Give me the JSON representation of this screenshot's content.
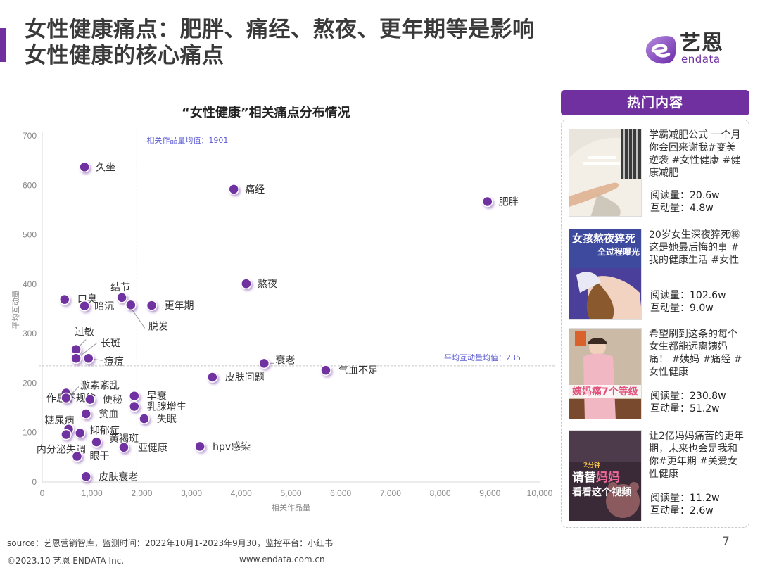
{
  "header": {
    "title_line1": "女性健康痛点：肥胖、痛经、熬夜、更年期等是影响",
    "title_line2": "女性健康的核心痛点",
    "accent_color": "#7030a0"
  },
  "logo": {
    "cn": "艺恩",
    "en": "endata"
  },
  "chart_data": {
    "type": "scatter",
    "title": "“女性健康”相关痛点分布情况",
    "xlabel": "相关作品量",
    "ylabel": "平均互动量",
    "xlim": [
      0,
      10000
    ],
    "ylim": [
      0,
      700
    ],
    "x_ticks": [
      "0",
      "1,000",
      "2,000",
      "3,000",
      "4,000",
      "5,000",
      "6,000",
      "7,000",
      "8,000",
      "9,000",
      "10,000"
    ],
    "y_ticks": [
      "0",
      "100",
      "200",
      "300",
      "400",
      "500",
      "600",
      "700"
    ],
    "grid": false,
    "legend": null,
    "point_color": "#7030a0",
    "reference_lines": [
      {
        "axis": "x",
        "value": 1901,
        "label": "相关作品量均值：1901"
      },
      {
        "axis": "y",
        "value": 235,
        "label": "平均互动量均值：235"
      }
    ],
    "points": [
      {
        "label": "久坐",
        "x": 850,
        "y": 637
      },
      {
        "label": "痛经",
        "x": 3850,
        "y": 592
      },
      {
        "label": "肥胖",
        "x": 8950,
        "y": 567
      },
      {
        "label": "熬夜",
        "x": 4100,
        "y": 401
      },
      {
        "label": "口臭",
        "x": 450,
        "y": 369
      },
      {
        "label": "暗沉",
        "x": 850,
        "y": 356
      },
      {
        "label": "结节",
        "x": 1600,
        "y": 373
      },
      {
        "label": "脱发",
        "x": 1780,
        "y": 358
      },
      {
        "label": "更年期",
        "x": 2200,
        "y": 357
      },
      {
        "label": "过敏",
        "x": 680,
        "y": 268
      },
      {
        "label": "长斑",
        "x": 680,
        "y": 250
      },
      {
        "label": "痘痘",
        "x": 930,
        "y": 250
      },
      {
        "label": "作息不规律",
        "x": 480,
        "y": 180
      },
      {
        "label": "激素紊乱",
        "x": 480,
        "y": 170
      },
      {
        "label": "便秘",
        "x": 960,
        "y": 167
      },
      {
        "label": "贫血",
        "x": 880,
        "y": 138
      },
      {
        "label": "早衰",
        "x": 1850,
        "y": 174
      },
      {
        "label": "乳腺增生",
        "x": 1850,
        "y": 153
      },
      {
        "label": "失眠",
        "x": 2050,
        "y": 128
      },
      {
        "label": "糖尿病",
        "x": 530,
        "y": 107
      },
      {
        "label": "抑郁症",
        "x": 760,
        "y": 99
      },
      {
        "label": "内分泌失调",
        "x": 480,
        "y": 96
      },
      {
        "label": "黄褐斑",
        "x": 1090,
        "y": 81
      },
      {
        "label": "亚健康",
        "x": 1640,
        "y": 70
      },
      {
        "label": "hpv感染",
        "x": 3170,
        "y": 72
      },
      {
        "label": "眼干",
        "x": 700,
        "y": 52
      },
      {
        "label": "皮肤衰老",
        "x": 880,
        "y": 11
      },
      {
        "label": "衰老",
        "x": 4460,
        "y": 240
      },
      {
        "label": "皮肤问题",
        "x": 3420,
        "y": 212
      },
      {
        "label": "气血不足",
        "x": 5700,
        "y": 226
      }
    ]
  },
  "hot_content": {
    "title": "热门内容",
    "items": [
      {
        "text": "学霸减肥公式 一个月 你会回来谢我#变美逆袭 #女性健康 #健康减肥",
        "reads": "阅读量：20.6w",
        "interactions": "互动量：4.8w",
        "thumb_caption": ""
      },
      {
        "text": "20岁女生深夜猝死㊙这是她最后悔的事 #我的健康生活 #女性",
        "reads": "阅读量：102.6w",
        "interactions": "互动量：9.0w",
        "thumb_caption": "女孩熬夜猝死 全过程曝光"
      },
      {
        "text": "希望刷到这条的每个女生都能远离姨妈痛！ #姨妈 #痛经 #女性健康",
        "reads": "阅读量：230.8w",
        "interactions": "互动量：51.2w",
        "thumb_caption": "姨妈痛7个等级"
      },
      {
        "text": "让2亿妈妈痛苦的更年期，未来也会是我和你#更年期 #关爱女性健康",
        "reads": "阅读量：11.2w",
        "interactions": "互动量：2.6w",
        "thumb_caption": "2分钟 请替妈妈 看看这个视频"
      }
    ]
  },
  "footer": {
    "source": "source：艺恩营销智库，监测时间：2022年10月1-2023年9月30，监控平台：小红书",
    "copyright": "©2023.10  艺恩 ENDATA Inc.",
    "url": "www.endata.com.cn",
    "page_number": "7"
  }
}
